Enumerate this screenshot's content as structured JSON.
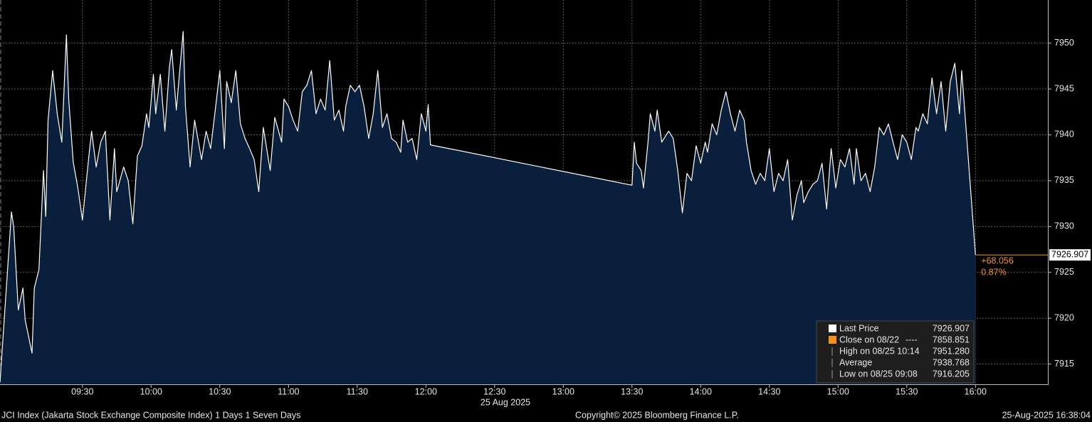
{
  "chart_data": {
    "type": "area-line",
    "footer_left": "JCI Index (Jakarta Stock Exchange Composite Index) 1 Days 1 Seven Days",
    "footer_center": "Copyright© 2025 Bloomberg Finance L.P.",
    "footer_right": "25-Aug-2025 16:38:04",
    "date_label": "25 Aug 2025",
    "xlim": [
      "08:54",
      "16:31"
    ],
    "xticks": [
      "09:30",
      "10:00",
      "10:30",
      "11:00",
      "11:30",
      "12:00",
      "12:30",
      "13:00",
      "13:30",
      "14:00",
      "14:30",
      "15:00",
      "15:30",
      "16:00"
    ],
    "ylim": [
      7912.8,
      7954.7
    ],
    "yticks": [
      7915,
      7920,
      7925,
      7930,
      7935,
      7940,
      7945,
      7950
    ],
    "grid": true,
    "fill_color": "#0a1f3c",
    "x": [
      "08:54",
      "08:59",
      "09:00",
      "09:02",
      "09:04",
      "09:05",
      "09:08",
      "09:09",
      "09:11",
      "09:13",
      "09:14",
      "09:15",
      "09:17",
      "09:19",
      "09:21",
      "09:23",
      "09:24",
      "09:26",
      "09:28",
      "09:30",
      "09:33",
      "09:34",
      "09:36",
      "09:38",
      "09:40",
      "09:42",
      "09:44",
      "09:45",
      "09:48",
      "09:50",
      "09:52",
      "09:54",
      "09:56",
      "09:58",
      "09:59",
      "10:01",
      "10:02",
      "10:04",
      "10:06",
      "10:08",
      "10:09",
      "10:11",
      "10:14",
      "10:15",
      "10:17",
      "10:19",
      "10:22",
      "10:24",
      "10:26",
      "10:28",
      "10:30",
      "10:32",
      "10:33",
      "10:35",
      "10:37",
      "10:39",
      "10:41",
      "10:43",
      "10:45",
      "10:47",
      "10:49",
      "10:51",
      "10:52",
      "10:54",
      "10:57",
      "10:58",
      "11:00",
      "11:02",
      "11:04",
      "11:06",
      "11:08",
      "11:10",
      "11:12",
      "11:14",
      "11:16",
      "11:18",
      "11:20",
      "11:22",
      "11:24",
      "11:25",
      "11:27",
      "11:29",
      "11:31",
      "11:33",
      "11:35",
      "11:37",
      "11:39",
      "11:41",
      "11:43",
      "11:45",
      "11:47",
      "11:49",
      "11:50",
      "11:52",
      "11:54",
      "11:56",
      "11:58",
      "12:00",
      "12:01",
      "12:02",
      "13:30",
      "13:31",
      "13:32",
      "13:34",
      "13:35",
      "13:37",
      "13:38",
      "13:40",
      "13:41",
      "13:43",
      "13:44",
      "13:46",
      "13:48",
      "13:50",
      "13:52",
      "13:54",
      "13:56",
      "13:58",
      "14:00",
      "14:02",
      "14:03",
      "14:05",
      "14:07",
      "14:09",
      "14:11",
      "14:13",
      "14:15",
      "14:17",
      "14:19",
      "14:20",
      "14:22",
      "14:24",
      "14:26",
      "14:28",
      "14:30",
      "14:32",
      "14:34",
      "14:36",
      "14:38",
      "14:40",
      "14:42",
      "14:44",
      "14:45",
      "14:47",
      "14:49",
      "14:51",
      "14:53",
      "14:55",
      "14:57",
      "14:59",
      "15:01",
      "15:03",
      "15:05",
      "15:07",
      "15:08",
      "15:10",
      "15:12",
      "15:14",
      "15:16",
      "15:18",
      "15:20",
      "15:22",
      "15:24",
      "15:26",
      "15:28",
      "15:30",
      "15:32",
      "15:34",
      "15:35",
      "15:37",
      "15:39",
      "15:41",
      "15:43",
      "15:45",
      "15:47",
      "15:49",
      "15:51",
      "15:53",
      "15:54",
      "16:00"
    ],
    "series": [
      {
        "name": "Last Price",
        "color": "#ffffff",
        "values": [
          7913.0,
          7931.6,
          7929.9,
          7920.9,
          7923.3,
          7919.8,
          7916.2,
          7923.3,
          7925.3,
          7936.1,
          7931.1,
          7941.6,
          7947.0,
          7942.3,
          7939.2,
          7950.9,
          7943.9,
          7937.0,
          7934.2,
          7930.7,
          7938.1,
          7940.4,
          7936.5,
          7939.2,
          7940.4,
          7930.7,
          7938.5,
          7933.8,
          7936.5,
          7935.0,
          7930.3,
          7937.7,
          7938.8,
          7942.3,
          7940.8,
          7946.6,
          7942.3,
          7946.6,
          7940.4,
          7947.4,
          7949.3,
          7942.7,
          7951.28,
          7943.1,
          7936.5,
          7941.6,
          7937.3,
          7940.4,
          7938.5,
          7942.7,
          7947.0,
          7938.5,
          7945.8,
          7943.5,
          7947.0,
          7941.2,
          7939.6,
          7938.5,
          7937.3,
          7933.8,
          7940.8,
          7937.7,
          7936.1,
          7941.9,
          7939.2,
          7943.9,
          7943.1,
          7941.6,
          7940.4,
          7944.7,
          7945.4,
          7947.0,
          7942.3,
          7943.9,
          7942.7,
          7948.1,
          7941.6,
          7942.7,
          7940.4,
          7943.1,
          7945.4,
          7944.7,
          7945.4,
          7943.1,
          7939.6,
          7942.3,
          7947.0,
          7940.8,
          7942.3,
          7939.6,
          7939.2,
          7938.1,
          7941.6,
          7939.2,
          7939.6,
          7937.3,
          7942.3,
          7940.4,
          7943.3,
          7938.9,
          7934.5,
          7939.2,
          7936.9,
          7936.1,
          7934.2,
          7939.2,
          7942.3,
          7940.4,
          7942.7,
          7939.2,
          7939.6,
          7940.4,
          7939.6,
          7936.1,
          7931.5,
          7935.8,
          7935.0,
          7938.8,
          7936.9,
          7939.2,
          7938.1,
          7941.2,
          7940.0,
          7942.7,
          7944.7,
          7942.3,
          7940.4,
          7942.7,
          7941.6,
          7939.2,
          7936.1,
          7934.6,
          7935.8,
          7935.0,
          7938.5,
          7933.8,
          7935.8,
          7935.0,
          7937.3,
          7930.7,
          7933.4,
          7935.0,
          7932.6,
          7933.8,
          7934.6,
          7935.0,
          7936.9,
          7931.9,
          7938.5,
          7934.2,
          7937.3,
          7936.5,
          7938.5,
          7934.6,
          7938.5,
          7935.0,
          7935.8,
          7933.8,
          7936.5,
          7940.8,
          7940.0,
          7941.2,
          7939.2,
          7937.3,
          7940.0,
          7939.2,
          7937.3,
          7940.8,
          7940.4,
          7942.3,
          7941.2,
          7946.2,
          7942.3,
          7945.8,
          7940.4,
          7945.8,
          7947.8,
          7942.3,
          7947.0,
          7926.907
        ]
      }
    ],
    "last_value": 7926.907,
    "change_label": "+68.056",
    "change_pct_label": "0.87%",
    "change_color": "#f7931e",
    "stats": [
      {
        "label": "Close on 08/22",
        "marker": "----",
        "value": 7858.851,
        "color": "#f7931e"
      },
      {
        "label": "High on 08/25 10:14",
        "value": 7951.28,
        "value_label": "7951.280"
      },
      {
        "label": "Average",
        "value": 7938.768
      },
      {
        "label": "Low on 08/25 09:08",
        "value": 7916.205
      }
    ]
  }
}
